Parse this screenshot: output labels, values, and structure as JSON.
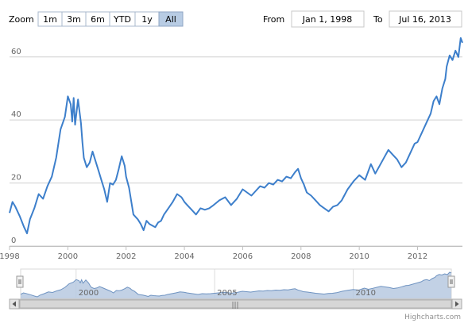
{
  "range_selector": {
    "zoom_label": "Zoom",
    "buttons": [
      {
        "label": "1m",
        "active": false
      },
      {
        "label": "3m",
        "active": false
      },
      {
        "label": "6m",
        "active": false
      },
      {
        "label": "YTD",
        "active": false
      },
      {
        "label": "1y",
        "active": false
      },
      {
        "label": "All",
        "active": true
      }
    ],
    "from_label": "From",
    "from_value": "Jan 1, 1998",
    "to_label": "To",
    "to_value": "Jul 16, 2013"
  },
  "navigator": {
    "tick_labels": [
      "2000",
      "2005",
      "2010"
    ],
    "scrollbar_grip": "|||"
  },
  "credits": "Highcharts.com",
  "colors": {
    "line": "#3d7fcb",
    "navigator_fill": "#b7c9e0",
    "navigator_line": "#6f93c1",
    "grid": "#cfcfcf",
    "button_active": "#b8cce4"
  },
  "chart_data": {
    "type": "line",
    "title": "",
    "xlabel": "",
    "ylabel": "",
    "xlim": [
      1998.0,
      2013.54
    ],
    "ylim": [
      0,
      68
    ],
    "y_ticks": [
      0,
      20,
      40,
      60
    ],
    "x_ticks": [
      1998,
      2000,
      2002,
      2004,
      2006,
      2008,
      2010,
      2012
    ],
    "x_tick_labels": [
      "1998",
      "2000",
      "2002",
      "2004",
      "2006",
      "2008",
      "2010",
      "2012"
    ],
    "grid": true,
    "legend": "none",
    "series": [
      {
        "x": [
          1998.0,
          1998.1,
          1998.2,
          1998.35,
          1998.5,
          1998.6,
          1998.7,
          1998.85,
          1999.0,
          1999.15,
          1999.3,
          1999.45,
          1999.6,
          1999.75,
          1999.9,
          2000.0,
          2000.1,
          2000.15,
          2000.2,
          2000.25,
          2000.35,
          2000.45,
          2000.5,
          2000.55,
          2000.65,
          2000.75,
          2000.85,
          2000.95,
          2001.05,
          2001.15,
          2001.25,
          2001.35,
          2001.45,
          2001.55,
          2001.65,
          2001.75,
          2001.85,
          2001.95,
          2002.0,
          2002.1,
          2002.25,
          2002.4,
          2002.5,
          2002.6,
          2002.7,
          2002.8,
          2002.9,
          2003.0,
          2003.1,
          2003.2,
          2003.3,
          2003.45,
          2003.6,
          2003.75,
          2003.9,
          2004.0,
          2004.1,
          2004.25,
          2004.4,
          2004.55,
          2004.7,
          2004.85,
          2005.0,
          2005.2,
          2005.4,
          2005.6,
          2005.8,
          2006.0,
          2006.15,
          2006.3,
          2006.45,
          2006.6,
          2006.75,
          2006.9,
          2007.05,
          2007.2,
          2007.35,
          2007.5,
          2007.65,
          2007.8,
          2007.9,
          2008.0,
          2008.1,
          2008.2,
          2008.35,
          2008.5,
          2008.65,
          2008.8,
          2008.95,
          2009.1,
          2009.25,
          2009.4,
          2009.6,
          2009.8,
          2010.0,
          2010.2,
          2010.4,
          2010.55,
          2010.7,
          2010.85,
          2011.0,
          2011.15,
          2011.3,
          2011.45,
          2011.6,
          2011.75,
          2011.9,
          2012.0,
          2012.15,
          2012.3,
          2012.45,
          2012.55,
          2012.65,
          2012.75,
          2012.85,
          2012.95,
          2013.0,
          2013.1,
          2013.2,
          2013.3,
          2013.4,
          2013.48,
          2013.54
        ],
        "values": [
          10.5,
          14.0,
          12.5,
          9.5,
          6.0,
          4.0,
          8.5,
          12.0,
          16.5,
          15.0,
          19.0,
          22.0,
          28.0,
          37.0,
          41.0,
          47.5,
          45.0,
          39.5,
          47.0,
          38.5,
          46.5,
          39.0,
          33.0,
          28.0,
          25.0,
          26.5,
          30.0,
          27.0,
          24.0,
          21.0,
          18.0,
          14.0,
          20.0,
          19.5,
          21.0,
          24.5,
          28.5,
          25.5,
          22.0,
          18.5,
          10.0,
          8.5,
          7.0,
          5.0,
          8.0,
          7.0,
          6.5,
          6.0,
          7.5,
          8.0,
          10.0,
          12.0,
          14.0,
          16.5,
          15.5,
          14.0,
          13.0,
          11.5,
          10.0,
          12.0,
          11.5,
          12.0,
          13.0,
          14.5,
          15.5,
          13.0,
          15.0,
          18.0,
          17.0,
          16.0,
          17.5,
          19.0,
          18.5,
          20.0,
          19.5,
          21.0,
          20.5,
          22.0,
          21.5,
          23.5,
          24.5,
          21.5,
          19.5,
          17.0,
          16.0,
          14.5,
          13.0,
          12.0,
          11.0,
          12.5,
          13.0,
          14.5,
          18.0,
          20.5,
          22.5,
          21.0,
          26.0,
          23.0,
          25.5,
          28.0,
          30.5,
          29.0,
          27.5,
          25.0,
          26.5,
          29.5,
          32.5,
          33.0,
          36.0,
          39.0,
          42.0,
          46.0,
          47.5,
          45.0,
          50.0,
          53.0,
          57.0,
          60.5,
          59.0,
          62.0,
          60.0,
          66.0,
          64.5
        ]
      }
    ]
  }
}
